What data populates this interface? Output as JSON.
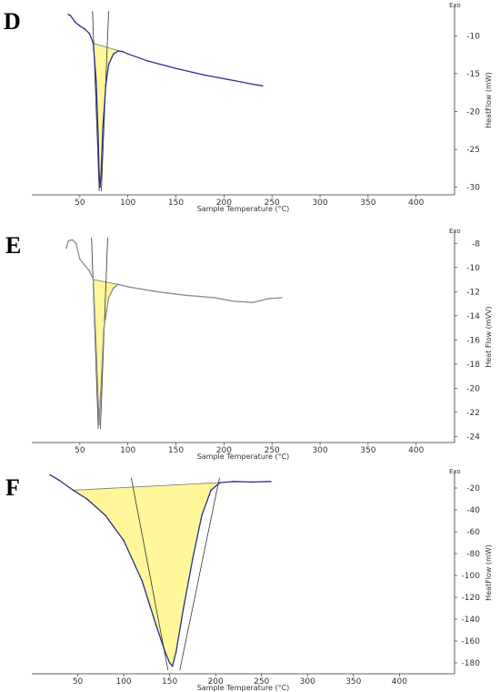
{
  "chart_data": [
    {
      "panel": "D",
      "type": "line",
      "xlabel": "Sample Temperature (°C)",
      "ylabel": "HeatFlow (mW)",
      "exo_label": "Exo",
      "xlim": [
        0,
        440
      ],
      "ylim": [
        -31,
        -6
      ],
      "xticks": [
        50,
        100,
        150,
        200,
        250,
        300,
        350,
        400
      ],
      "yticks": [
        -10,
        -15,
        -20,
        -25,
        -30
      ],
      "ytick_labels": [
        "-10",
        "-15",
        "-20",
        "-25",
        "-30"
      ],
      "line_color": "#2a2f8a",
      "fill_color": "#fff79a",
      "fill_range": [
        64,
        92
      ],
      "series": [
        {
          "x": [
            38,
            40,
            45,
            50,
            55,
            60,
            64,
            67,
            69,
            70,
            71,
            72,
            74,
            77,
            80,
            85,
            90,
            95,
            100,
            120,
            150,
            180,
            210,
            230,
            240
          ],
          "y": [
            -7.2,
            -7.3,
            -8.2,
            -8.7,
            -9.1,
            -9.7,
            -11.0,
            -16.0,
            -23.0,
            -28.0,
            -30.0,
            -28.5,
            -22.0,
            -16.5,
            -13.8,
            -12.4,
            -12.0,
            -12.1,
            -12.4,
            -13.3,
            -14.3,
            -15.2,
            -15.9,
            -16.4,
            -16.6
          ]
        }
      ]
    },
    {
      "panel": "E",
      "type": "line",
      "xlabel": "Sample Temperature (°C)",
      "ylabel": "Heat Flow (mVV)",
      "exo_label": "Exo",
      "xlim": [
        0,
        440
      ],
      "ylim": [
        -24.5,
        -7
      ],
      "xticks": [
        50,
        100,
        150,
        200,
        250,
        300,
        350,
        400
      ],
      "yticks": [
        -8,
        -10,
        -12,
        -14,
        -16,
        -18,
        -20,
        -22,
        -24
      ],
      "ytick_labels": [
        "-8",
        "-10",
        "-12",
        "-14",
        "-16",
        "-18",
        "-20",
        "-22",
        "-24"
      ],
      "line_color": "#8c8c8c",
      "fill_color": "#fff79a",
      "fill_range": [
        64,
        92
      ],
      "series": [
        {
          "x": [
            36,
            38,
            42,
            46,
            50,
            55,
            60,
            64,
            66,
            68,
            70,
            72,
            75,
            80,
            85,
            90,
            95,
            100,
            130,
            160,
            190,
            210,
            230,
            245,
            260
          ],
          "y": [
            -8.4,
            -7.8,
            -7.7,
            -8.0,
            -9.3,
            -9.8,
            -10.3,
            -11.0,
            -15.0,
            -19.0,
            -23.0,
            -20.0,
            -15.0,
            -12.5,
            -11.7,
            -11.4,
            -11.5,
            -11.6,
            -12.0,
            -12.3,
            -12.5,
            -12.8,
            -12.9,
            -12.6,
            -12.5
          ]
        }
      ]
    },
    {
      "panel": "F",
      "type": "line",
      "xlabel": "Sample Temperature (°C)",
      "ylabel": "HeatFlow (mW)",
      "exo_label": "Exo",
      "xlim": [
        0,
        460
      ],
      "ylim": [
        -190,
        -5
      ],
      "xticks": [
        50,
        100,
        150,
        200,
        250,
        300,
        350,
        400
      ],
      "yticks": [
        -20,
        -40,
        -60,
        -80,
        -100,
        -120,
        -140,
        -160,
        -180
      ],
      "ytick_labels": [
        "-20",
        "-40",
        "-60",
        "-80",
        "-100",
        "-120",
        "-140",
        "-160",
        "-180"
      ],
      "line_color": "#2a2f8a",
      "fill_color": "#fff79a",
      "fill_range": [
        45,
        205
      ],
      "series": [
        {
          "x": [
            20,
            30,
            45,
            60,
            80,
            100,
            120,
            135,
            145,
            150,
            153,
            157,
            165,
            175,
            185,
            195,
            205,
            220,
            240,
            260
          ],
          "y": [
            -8,
            -13,
            -22,
            -30,
            -45,
            -68,
            -105,
            -145,
            -170,
            -180,
            -183,
            -170,
            -130,
            -85,
            -45,
            -22,
            -15,
            -14,
            -14.5,
            -14
          ]
        }
      ]
    }
  ]
}
